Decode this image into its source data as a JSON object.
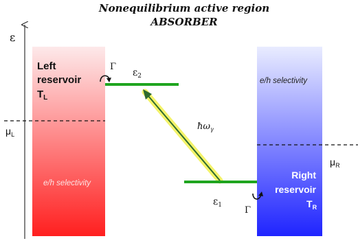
{
  "title": {
    "line1": "Nonequilibrium active region",
    "line2": "ABSORBER"
  },
  "axis": {
    "energy_symbol": "ε"
  },
  "left_reservoir": {
    "label_line1": "Left",
    "label_line2": "reservoir",
    "temperature": "T",
    "temperature_sub": "L",
    "selectivity": "e/h selectivity",
    "chem_potential": "μ",
    "chem_potential_sub": "L",
    "gradient_top": "#fde9ea",
    "gradient_bottom": "#ff1f1f"
  },
  "right_reservoir": {
    "label_line1": "Right",
    "label_line2": "reservoir",
    "temperature": "T",
    "temperature_sub": "R",
    "selectivity": "e/h selectivity",
    "chem_potential": "μ",
    "chem_potential_sub": "R",
    "gradient_top": "#e9ecff",
    "gradient_bottom": "#1f24ff"
  },
  "levels": {
    "upper": {
      "symbol": "ε",
      "sub": "2"
    },
    "lower": {
      "symbol": "ε",
      "sub": "1"
    },
    "color": "#1fa51f"
  },
  "coupling": {
    "top": "Γ",
    "bottom": "Γ"
  },
  "photon": {
    "label": "ħω",
    "sub": "γ",
    "arrow_color": "#2f6b2f",
    "highlight_color": "#f4f36a"
  }
}
